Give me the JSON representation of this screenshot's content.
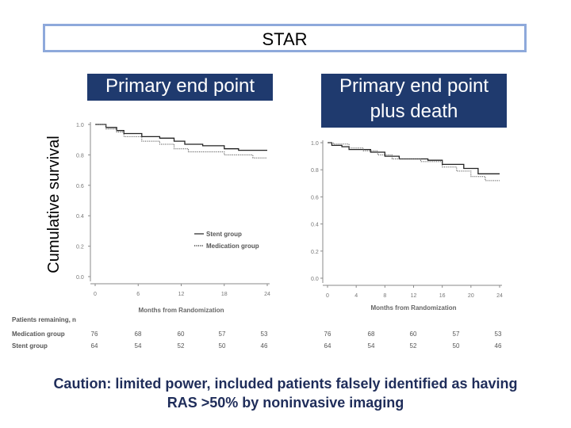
{
  "title": "STAR",
  "panel_left": {
    "heading": "Primary end point"
  },
  "panel_right": {
    "heading_line1": "Primary end point",
    "heading_line2": "plus death"
  },
  "y_axis_label": "Cumulative survival",
  "caption": {
    "line1": "Caution: limited power, included patients falsely identified as having",
    "line2": "RAS >50% by noninvasive imaging"
  },
  "chart_data": [
    {
      "type": "line",
      "panel": "left",
      "title": "Primary end point",
      "xlabel": "Months from Randomization",
      "ylabel": "Cumulative survival",
      "xlim": [
        0,
        24
      ],
      "ylim": [
        0,
        1.0
      ],
      "x_ticks": [
        0,
        6,
        12,
        18,
        24
      ],
      "y_ticks": [
        "0.0",
        "0.2",
        "0.4",
        "0.6",
        "0.8",
        "1.0"
      ],
      "legend": [
        "Stent group",
        "Medication group"
      ],
      "series": [
        {
          "name": "Stent group",
          "style": "solid",
          "points": [
            [
              0,
              1.0
            ],
            [
              1.5,
              1.0
            ],
            [
              1.5,
              0.98
            ],
            [
              3,
              0.98
            ],
            [
              3,
              0.96
            ],
            [
              4,
              0.96
            ],
            [
              4,
              0.94
            ],
            [
              6.5,
              0.94
            ],
            [
              6.5,
              0.92
            ],
            [
              9,
              0.92
            ],
            [
              9,
              0.91
            ],
            [
              11,
              0.91
            ],
            [
              11,
              0.89
            ],
            [
              12.5,
              0.89
            ],
            [
              12.5,
              0.87
            ],
            [
              15,
              0.87
            ],
            [
              15,
              0.86
            ],
            [
              18,
              0.86
            ],
            [
              18,
              0.84
            ],
            [
              20,
              0.84
            ],
            [
              20,
              0.83
            ],
            [
              24,
              0.83
            ]
          ]
        },
        {
          "name": "Medication group",
          "style": "dotted",
          "points": [
            [
              0,
              1.0
            ],
            [
              1.5,
              1.0
            ],
            [
              1.5,
              0.97
            ],
            [
              3,
              0.97
            ],
            [
              3,
              0.95
            ],
            [
              4,
              0.95
            ],
            [
              4,
              0.92
            ],
            [
              6.5,
              0.92
            ],
            [
              6.5,
              0.89
            ],
            [
              9,
              0.89
            ],
            [
              9,
              0.87
            ],
            [
              11,
              0.87
            ],
            [
              11,
              0.84
            ],
            [
              13,
              0.84
            ],
            [
              13,
              0.82
            ],
            [
              18,
              0.82
            ],
            [
              18,
              0.8
            ],
            [
              22,
              0.8
            ],
            [
              22,
              0.78
            ],
            [
              24,
              0.78
            ]
          ]
        }
      ],
      "risk_table": {
        "header": "Patients remaining, n",
        "rows": [
          {
            "label": "Medication group",
            "values": [
              "76",
              "68",
              "60",
              "57",
              "53"
            ]
          },
          {
            "label": "Stent group",
            "values": [
              "64",
              "54",
              "52",
              "50",
              "46"
            ]
          }
        ]
      }
    },
    {
      "type": "line",
      "panel": "right",
      "title": "Primary end point plus death",
      "xlabel": "Months from Randomization",
      "xlim": [
        0,
        24
      ],
      "ylim": [
        0,
        1.0
      ],
      "x_ticks": [
        0,
        4,
        8,
        12,
        16,
        20,
        24
      ],
      "y_ticks": [
        "0.0",
        "0.2",
        "0.4",
        "0.6",
        "0.8",
        "1.0"
      ],
      "series": [
        {
          "name": "Stent group",
          "style": "solid",
          "points": [
            [
              0,
              1.0
            ],
            [
              0.6,
              1.0
            ],
            [
              0.6,
              0.98
            ],
            [
              2,
              0.98
            ],
            [
              2,
              0.97
            ],
            [
              3,
              0.97
            ],
            [
              3,
              0.95
            ],
            [
              6,
              0.95
            ],
            [
              6,
              0.93
            ],
            [
              8,
              0.93
            ],
            [
              8,
              0.9
            ],
            [
              10,
              0.9
            ],
            [
              10,
              0.88
            ],
            [
              14,
              0.88
            ],
            [
              14,
              0.87
            ],
            [
              16,
              0.87
            ],
            [
              16,
              0.84
            ],
            [
              19,
              0.84
            ],
            [
              19,
              0.81
            ],
            [
              21,
              0.81
            ],
            [
              21,
              0.77
            ],
            [
              24,
              0.77
            ]
          ]
        },
        {
          "name": "Medication group",
          "style": "dotted",
          "points": [
            [
              0,
              1.0
            ],
            [
              0.8,
              1.0
            ],
            [
              0.8,
              0.99
            ],
            [
              3,
              0.99
            ],
            [
              3,
              0.96
            ],
            [
              5,
              0.96
            ],
            [
              5,
              0.94
            ],
            [
              7,
              0.94
            ],
            [
              7,
              0.91
            ],
            [
              9,
              0.91
            ],
            [
              9,
              0.88
            ],
            [
              13,
              0.88
            ],
            [
              13,
              0.86
            ],
            [
              16,
              0.86
            ],
            [
              16,
              0.82
            ],
            [
              18,
              0.82
            ],
            [
              18,
              0.79
            ],
            [
              20,
              0.79
            ],
            [
              20,
              0.75
            ],
            [
              22,
              0.75
            ],
            [
              22,
              0.72
            ],
            [
              24,
              0.72
            ]
          ]
        }
      ],
      "risk_table": {
        "rows": [
          {
            "label": "Medication group",
            "values": [
              "76",
              "68",
              "60",
              "57",
              "53"
            ]
          },
          {
            "label": "Stent group",
            "values": [
              "64",
              "54",
              "52",
              "50",
              "46"
            ]
          }
        ]
      }
    }
  ]
}
